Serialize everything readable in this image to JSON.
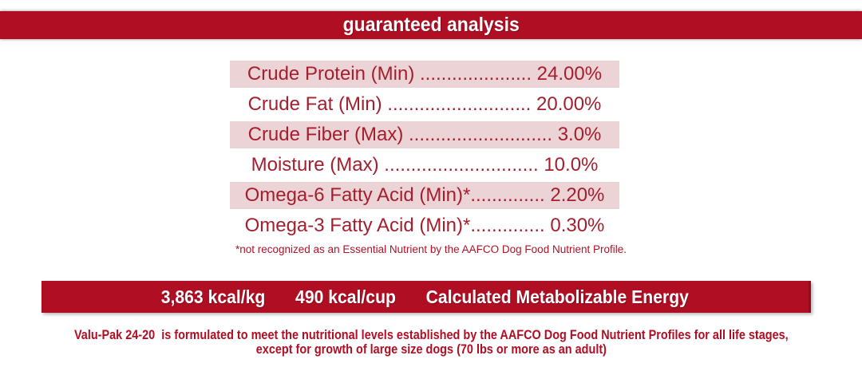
{
  "title_banner": {
    "label": "guaranteed analysis",
    "bg_color": "#B00E23",
    "text_color": "#FFFFFF"
  },
  "analysis": {
    "highlight_color": "#ECD3D6",
    "text_color": "#A41F2E",
    "rows": [
      {
        "label": "Crude Protein (Min)",
        "value": "24.00%",
        "highlighted": true,
        "text": "Crude Protein (Min) ..................... 24.00%"
      },
      {
        "label": "Crude Fat (Min)",
        "value": "20.00%",
        "highlighted": false,
        "text": "Crude Fat (Min) ........................... 20.00%"
      },
      {
        "label": "Crude Fiber (Max)",
        "value": "3.0%",
        "highlighted": true,
        "text": "Crude Fiber (Max) ........................... 3.0%"
      },
      {
        "label": "Moisture (Max)",
        "value": "10.0%",
        "highlighted": false,
        "text": "Moisture (Max) ............................. 10.0%"
      },
      {
        "label": "Omega-6 Fatty Acid (Min)*",
        "value": "2.20%",
        "highlighted": true,
        "text": "Omega-6 Fatty Acid (Min)*.............. 2.20%"
      },
      {
        "label": "Omega-3 Fatty Acid (Min)*",
        "value": "0.30%",
        "highlighted": false,
        "text": "Omega-3 Fatty Acid (Min)*.............. 0.30%"
      }
    ],
    "footnote": "*not recognized as an Essential Nutrient by the AAFCO Dog Food Nutrient Profile."
  },
  "energy_banner": {
    "kcal_per_kg": "3,863 kcal/kg",
    "kcal_per_cup": "490 kcal/cup",
    "label": "Calculated Metabolizable Energy",
    "bg_color": "#B00E23",
    "text_color": "#FFFFFF"
  },
  "aafco_statement": {
    "product_name": "Valu-Pak 24-20",
    "line1": "Valu-Pak 24-20  is formulated to meet the nutritional levels established by the AAFCO Dog Food Nutrient Profiles for all life stages,",
    "line2": "except for growth of large size dogs (70 lbs or more as an adult)",
    "text_color": "#B00E23"
  }
}
